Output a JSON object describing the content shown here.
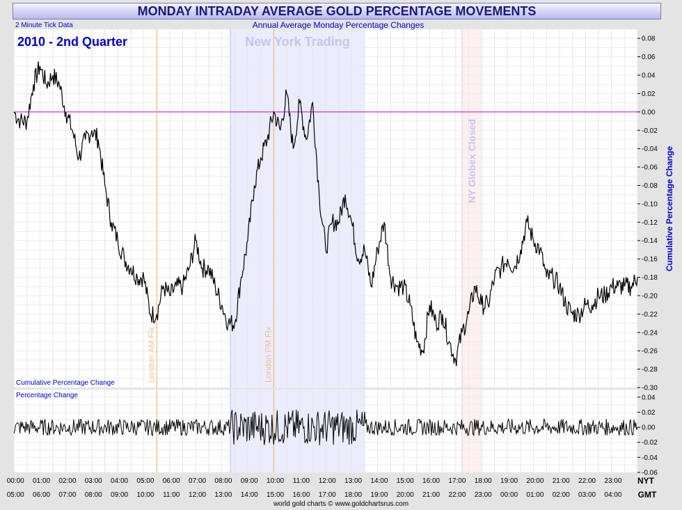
{
  "title": "MONDAY INTRADAY AVERAGE GOLD PERCENTAGE MOVEMENTS",
  "subtitle": "Annual Average Monday Percentage Changes",
  "tick_note": "2 Minute Tick Data",
  "period_label": "2010 - 2nd Quarter",
  "footer": "world gold charts © www.goldchartsrus.com",
  "colors": {
    "title_text": "#1a1a7a",
    "blue_text": "#0000cc",
    "line": "#000000",
    "zero_line": "#cc00cc",
    "ny_band": "#ececff",
    "globex_band": "#fff0f0",
    "fix_line": "#f0b070"
  },
  "chart_data": [
    {
      "type": "line",
      "panel_label": "Cumulative Percentage Change",
      "ylabel": "Cumulative Percentage Change",
      "ylim": [
        -0.3,
        0.09
      ],
      "yticks": [
        "0.08",
        "0.06",
        "0.04",
        "0.02",
        "0.00",
        "-0.02",
        "-0.04",
        "-0.06",
        "-0.08",
        "-0.10",
        "-0.12",
        "-0.14",
        "-0.16",
        "-0.18",
        "-0.20",
        "-0.22",
        "-0.24",
        "-0.26",
        "-0.28",
        "-0.30"
      ],
      "grid": true,
      "x_hours": [
        0,
        0.25,
        0.5,
        0.75,
        1,
        1.25,
        1.5,
        1.75,
        2,
        2.25,
        2.5,
        2.75,
        3,
        3.25,
        3.5,
        3.75,
        4,
        4.25,
        4.5,
        4.75,
        5,
        5.25,
        5.5,
        5.75,
        6,
        6.25,
        6.5,
        6.75,
        7,
        7.25,
        7.5,
        7.75,
        8,
        8.25,
        8.5,
        8.75,
        9,
        9.25,
        9.5,
        9.75,
        10,
        10.25,
        10.5,
        10.75,
        11,
        11.25,
        11.5,
        11.75,
        12,
        12.25,
        12.5,
        12.75,
        13,
        13.25,
        13.5,
        13.75,
        14,
        14.25,
        14.5,
        14.75,
        15,
        15.25,
        15.5,
        15.75,
        16,
        16.25,
        16.5,
        16.75,
        17,
        17.25,
        17.5,
        17.75,
        18,
        18.25,
        18.5,
        18.75,
        19,
        19.25,
        19.5,
        19.75,
        20,
        20.25,
        20.5,
        20.75,
        21,
        21.25,
        21.5,
        21.75,
        22,
        22.25,
        22.5,
        22.75,
        23,
        23.25,
        23.5,
        23.75,
        24
      ],
      "values": [
        0.0,
        -0.01,
        -0.01,
        0.03,
        0.05,
        0.03,
        0.04,
        0.03,
        0.0,
        -0.02,
        -0.05,
        -0.03,
        -0.02,
        -0.03,
        -0.08,
        -0.12,
        -0.14,
        -0.16,
        -0.17,
        -0.18,
        -0.18,
        -0.22,
        -0.22,
        -0.19,
        -0.2,
        -0.19,
        -0.19,
        -0.17,
        -0.14,
        -0.17,
        -0.17,
        -0.19,
        -0.21,
        -0.23,
        -0.23,
        -0.18,
        -0.14,
        -0.08,
        -0.05,
        -0.03,
        0.0,
        -0.02,
        0.02,
        -0.04,
        0.01,
        -0.03,
        0.01,
        -0.09,
        -0.15,
        -0.12,
        -0.12,
        -0.09,
        -0.12,
        -0.16,
        -0.15,
        -0.19,
        -0.15,
        -0.12,
        -0.18,
        -0.19,
        -0.19,
        -0.21,
        -0.25,
        -0.26,
        -0.21,
        -0.23,
        -0.22,
        -0.25,
        -0.27,
        -0.24,
        -0.22,
        -0.19,
        -0.21,
        -0.21,
        -0.18,
        -0.17,
        -0.16,
        -0.17,
        -0.15,
        -0.12,
        -0.14,
        -0.15,
        -0.18,
        -0.18,
        -0.19,
        -0.21,
        -0.22,
        -0.22,
        -0.21,
        -0.21,
        -0.2,
        -0.2,
        -0.19,
        -0.19,
        -0.19,
        -0.19,
        -0.18
      ]
    },
    {
      "type": "line",
      "panel_label": "Percentage Change",
      "ylim": [
        -0.06,
        0.05
      ],
      "yticks": [
        "0.04",
        "0.02",
        "0.00",
        "-0.02",
        "-0.04",
        "-0.06"
      ],
      "grid": true
    }
  ],
  "x_axis": {
    "nyt_label": "NYT",
    "gmt_label": "GMT",
    "nyt_ticks": [
      "00:00",
      "01:00",
      "02:00",
      "03:00",
      "04:00",
      "05:00",
      "06:00",
      "07:00",
      "08:00",
      "09:00",
      "10:00",
      "11:00",
      "12:00",
      "13:00",
      "14:00",
      "15:00",
      "16:00",
      "17:00",
      "18:00",
      "19:00",
      "20:00",
      "21:00",
      "22:00",
      "23:00"
    ],
    "gmt_ticks": [
      "05:00",
      "06:00",
      "07:00",
      "08:00",
      "09:00",
      "10:00",
      "11:00",
      "12:00",
      "13:00",
      "14:00",
      "15:00",
      "16:00",
      "17:00",
      "18:00",
      "19:00",
      "20:00",
      "21:00",
      "22:00",
      "23:00",
      "00:00",
      "01:00",
      "02:00",
      "03:00",
      "04:00"
    ]
  },
  "annotations": {
    "ny_trading": {
      "label": "New York Trading",
      "start_hour": 8.33,
      "end_hour": 13.5
    },
    "globex_closed": {
      "label": "NY Globex Closed",
      "start_hour": 17.25,
      "end_hour": 18.0
    },
    "london_am_fix": {
      "label": "London AM Fix",
      "hour": 5.5
    },
    "london_pm_fix": {
      "label": "London PM Fix",
      "hour": 10.0
    }
  }
}
